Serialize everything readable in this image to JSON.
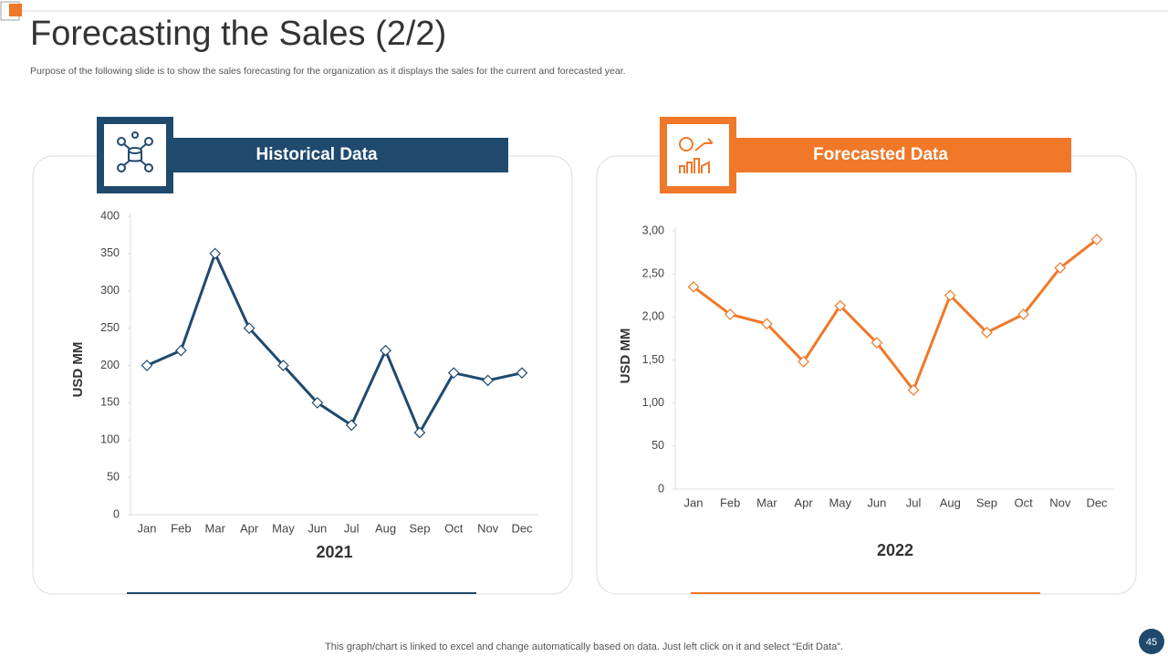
{
  "slide": {
    "title": "Forecasting the Sales (2/2)",
    "subtitle": "Purpose of the following slide is to show the sales forecasting for the organization as it displays the sales for the current and forecasted year.",
    "footer": "This graph/chart is linked to excel and change automatically based on data. Just left click on it and select “Edit Data”.",
    "page_number": "45"
  },
  "chart_data": [
    {
      "type": "line",
      "title": "Historical Data",
      "y_label": "USD MM",
      "x_label": "2021",
      "color": "#1f4a6e",
      "categories": [
        "Jan",
        "Feb",
        "Mar",
        "Apr",
        "May",
        "Jun",
        "Jul",
        "Aug",
        "Sep",
        "Oct",
        "Nov",
        "Dec"
      ],
      "values": [
        200,
        220,
        350,
        250,
        200,
        150,
        120,
        220,
        110,
        190,
        180,
        190
      ],
      "ylim": [
        0,
        400
      ],
      "yticks": [
        0,
        50,
        100,
        150,
        200,
        250,
        300,
        350,
        400
      ]
    },
    {
      "type": "line",
      "title": "Forecasted Data",
      "y_label": "USD MM",
      "x_label": "2022",
      "color": "#f07828",
      "categories": [
        "Jan",
        "Feb",
        "Mar",
        "Apr",
        "May",
        "Jun",
        "Jul",
        "Aug",
        "Sep",
        "Oct",
        "Nov",
        "Dec"
      ],
      "values": [
        235,
        203,
        192,
        148,
        213,
        170,
        115,
        225,
        182,
        203,
        257,
        290
      ],
      "ylim": [
        0,
        300
      ],
      "yticks": [
        0,
        50,
        {
          "value": 100,
          "label": "1,00"
        },
        {
          "value": 150,
          "label": "1,50"
        },
        {
          "value": 200,
          "label": "2,00"
        },
        {
          "value": 250,
          "label": "2,50"
        },
        {
          "value": 300,
          "label": "3,00"
        }
      ]
    }
  ]
}
